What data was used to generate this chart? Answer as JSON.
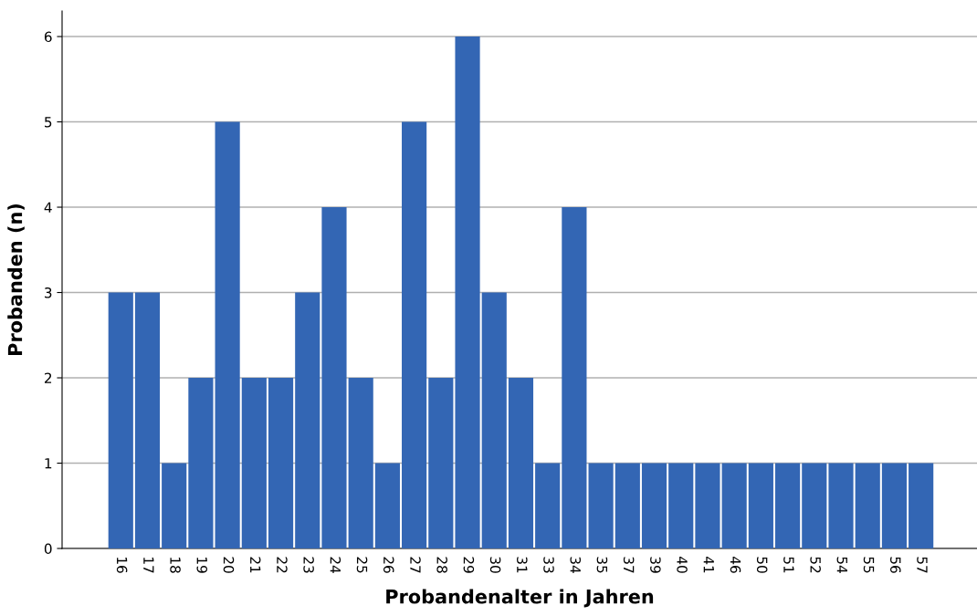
{
  "chart_data": {
    "type": "bar",
    "xlabel": "Probandenalter in Jahren",
    "ylabel": "Probanden (n)",
    "categories": [
      "16",
      "17",
      "18",
      "19",
      "20",
      "21",
      "22",
      "23",
      "24",
      "25",
      "26",
      "27",
      "28",
      "29",
      "30",
      "31",
      "33",
      "34",
      "35",
      "37",
      "39",
      "40",
      "41",
      "46",
      "50",
      "51",
      "52",
      "54",
      "55",
      "56",
      "57"
    ],
    "values": [
      3,
      3,
      1,
      2,
      5,
      2,
      2,
      3,
      4,
      2,
      1,
      5,
      2,
      6,
      3,
      2,
      1,
      4,
      1,
      1,
      1,
      1,
      1,
      1,
      1,
      1,
      1,
      1,
      1,
      1,
      1
    ],
    "color": "#3366b4",
    "ylim": [
      0,
      6.3
    ],
    "yticks": [
      0,
      1,
      2,
      3,
      4,
      5,
      6
    ],
    "grid": "y",
    "legend": false
  }
}
